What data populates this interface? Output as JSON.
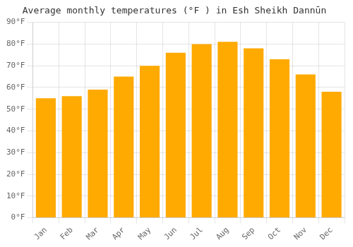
{
  "chart_data": {
    "type": "bar",
    "title": "Average monthly temperatures (°F ) in Esh Sheikh Dannūn",
    "categories": [
      "Jan",
      "Feb",
      "Mar",
      "Apr",
      "May",
      "Jun",
      "Jul",
      "Aug",
      "Sep",
      "Oct",
      "Nov",
      "Dec"
    ],
    "values": [
      55,
      56,
      59,
      65,
      70,
      76,
      80,
      81,
      78,
      73,
      66,
      58
    ],
    "color": "#FFAA00",
    "ylim": [
      0,
      90
    ],
    "yticks": [
      {
        "value": 0,
        "label": "0°F"
      },
      {
        "value": 10,
        "label": "10°F"
      },
      {
        "value": 20,
        "label": "20°F"
      },
      {
        "value": 30,
        "label": "30°F"
      },
      {
        "value": 40,
        "label": "40°F"
      },
      {
        "value": 50,
        "label": "50°F"
      },
      {
        "value": 60,
        "label": "60°F"
      },
      {
        "value": 70,
        "label": "70°F"
      },
      {
        "value": 80,
        "label": "80°F"
      },
      {
        "value": 90,
        "label": "90°F"
      }
    ],
    "grid": true
  }
}
